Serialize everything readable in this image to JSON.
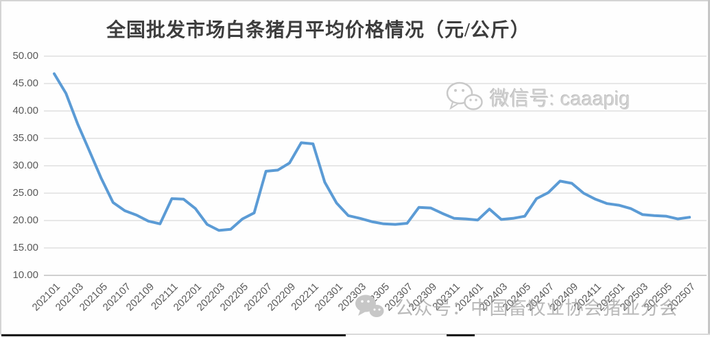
{
  "title": "全国批发市场白条猪月平均价格情况（元/公斤）",
  "watermarks": {
    "wechat_id": "微信号: caaapig",
    "account": "公众号：中国畜牧业协会猪业分会"
  },
  "colors": {
    "line": "#5b9bd5",
    "grid": "#d9d9d9",
    "axis_line": "#bfbfbf",
    "axis_text": "#595959",
    "title_text": "#3d3d3d",
    "watermark_gray": "#c7c7c7"
  },
  "chart_data": {
    "type": "line",
    "title": "全国批发市场白条猪月平均价格情况（元/公斤）",
    "xlabel": "",
    "ylabel": "",
    "ylim": [
      10,
      50
    ],
    "ytick_step": 5,
    "grid": "horizontal",
    "legend": "none",
    "x_tick_step": 2,
    "x_tick_labels": [
      "202101",
      "202103",
      "202105",
      "202107",
      "202109",
      "202111",
      "202201",
      "202203",
      "202205",
      "202207",
      "202209",
      "202211",
      "202301",
      "202303",
      "202305",
      "202307",
      "202309",
      "202311",
      "202401",
      "202403",
      "202405",
      "202407",
      "202409",
      "202411",
      "202501",
      "202503",
      "202505",
      "202507"
    ],
    "yticks": [
      "50.00",
      "45.00",
      "40.00",
      "35.00",
      "30.00",
      "25.00",
      "20.00",
      "15.00",
      "10.00"
    ],
    "x": [
      "202101",
      "202102",
      "202103",
      "202104",
      "202105",
      "202106",
      "202107",
      "202108",
      "202109",
      "202110",
      "202111",
      "202112",
      "202201",
      "202202",
      "202203",
      "202204",
      "202205",
      "202206",
      "202207",
      "202208",
      "202209",
      "202210",
      "202211",
      "202212",
      "202301",
      "202302",
      "202303",
      "202304",
      "202305",
      "202306",
      "202307",
      "202308",
      "202309",
      "202310",
      "202311",
      "202312",
      "202401",
      "202402",
      "202403",
      "202404",
      "202405",
      "202406",
      "202407",
      "202408",
      "202409",
      "202410",
      "202411",
      "202412",
      "202501",
      "202502",
      "202503",
      "202504",
      "202505",
      "202506",
      "202507"
    ],
    "values": [
      46.8,
      43.2,
      37.6,
      32.7,
      27.7,
      23.3,
      21.8,
      21.0,
      19.9,
      19.4,
      24.0,
      23.9,
      22.2,
      19.3,
      18.2,
      18.4,
      20.3,
      21.4,
      29.0,
      29.2,
      30.5,
      34.2,
      34.0,
      27.0,
      23.2,
      20.9,
      20.4,
      19.8,
      19.4,
      19.3,
      19.5,
      22.4,
      22.3,
      21.3,
      20.4,
      20.3,
      20.1,
      22.1,
      20.2,
      20.4,
      20.8,
      24.0,
      25.1,
      27.2,
      26.8,
      25.0,
      23.9,
      23.1,
      22.8,
      22.2,
      21.1,
      20.9,
      20.8,
      20.3,
      20.6
    ]
  }
}
